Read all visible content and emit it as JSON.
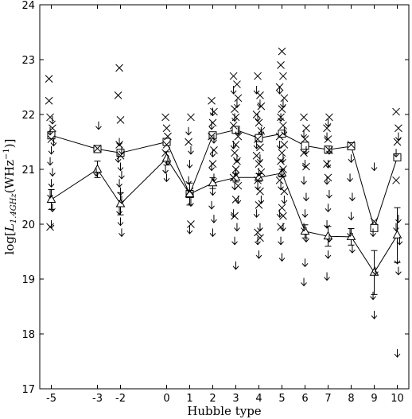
{
  "chart_data": {
    "type": "scatter",
    "title": "",
    "xlabel": "Hubble type",
    "ylabel": "log[L_1.4GHz(WHz^-1)]",
    "ylabel_parts": {
      "prefix": "log[",
      "L": "L",
      "sub": "1.4GHz",
      "mid": "(WHz",
      "sup": "−1",
      "suffix": ")]"
    },
    "xlim": [
      -5.5,
      10.5
    ],
    "ylim": [
      17,
      24
    ],
    "xticks": [
      -5,
      -3,
      -2,
      0,
      1,
      2,
      3,
      4,
      5,
      6,
      7,
      8,
      9,
      10
    ],
    "yticks": [
      17,
      18,
      19,
      20,
      21,
      22,
      23,
      24
    ],
    "grid": false,
    "series": [
      {
        "marker": "square",
        "values": [
          {
            "x": -5,
            "y": 21.62
          },
          {
            "x": -3,
            "y": 21.37
          },
          {
            "x": -2,
            "y": 21.3
          },
          {
            "x": 0,
            "y": 21.5
          },
          {
            "x": 1,
            "y": 20.55
          },
          {
            "x": 2,
            "y": 21.62
          },
          {
            "x": 3,
            "y": 21.72
          },
          {
            "x": 4,
            "y": 21.57
          },
          {
            "x": 5,
            "y": 21.65
          },
          {
            "x": 6,
            "y": 21.43
          },
          {
            "x": 7,
            "y": 21.36
          },
          {
            "x": 8,
            "y": 21.42
          },
          {
            "x": 9,
            "y": 19.93
          },
          {
            "x": 10,
            "y": 21.22
          }
        ]
      },
      {
        "marker": "triangle",
        "values": [
          {
            "x": -5,
            "y": 20.45,
            "err": 0.18
          },
          {
            "x": -3,
            "y": 21.0,
            "err": 0.15
          },
          {
            "x": -2,
            "y": 20.37,
            "err": 0.2
          },
          {
            "x": 0,
            "y": 21.2,
            "err": 0.12
          },
          {
            "x": 1,
            "y": 20.55,
            "err": 0.2
          },
          {
            "x": 2,
            "y": 20.75,
            "err": 0.1
          },
          {
            "x": 3,
            "y": 20.85,
            "err": 0.08
          },
          {
            "x": 4,
            "y": 20.85,
            "err": 0.07
          },
          {
            "x": 5,
            "y": 20.93,
            "err": 0.07
          },
          {
            "x": 6,
            "y": 19.87,
            "err": 0.12
          },
          {
            "x": 7,
            "y": 19.78,
            "err": 0.18
          },
          {
            "x": 8,
            "y": 19.77,
            "err": 0.15
          },
          {
            "x": 9,
            "y": 19.12,
            "err": 0.4
          },
          {
            "x": 10,
            "y": 19.8,
            "err": 0.5
          }
        ]
      },
      {
        "marker": "x",
        "values": [
          {
            "x": -5.1,
            "y": 22.65
          },
          {
            "x": -5.1,
            "y": 22.25
          },
          {
            "x": -5.05,
            "y": 21.95
          },
          {
            "x": -4.95,
            "y": 21.75
          },
          {
            "x": -5.0,
            "y": 21.55
          },
          {
            "x": -5.05,
            "y": 19.95
          },
          {
            "x": -3.0,
            "y": 21.38
          },
          {
            "x": -2.05,
            "y": 22.85
          },
          {
            "x": -2.1,
            "y": 22.35
          },
          {
            "x": -2.0,
            "y": 21.9
          },
          {
            "x": -2.05,
            "y": 21.45
          },
          {
            "x": -2.0,
            "y": 21.25
          },
          {
            "x": -0.05,
            "y": 21.95
          },
          {
            "x": 0.0,
            "y": 21.75
          },
          {
            "x": 0.05,
            "y": 21.6
          },
          {
            "x": 0.0,
            "y": 21.45
          },
          {
            "x": -0.05,
            "y": 21.3
          },
          {
            "x": 1.05,
            "y": 21.95
          },
          {
            "x": 0.95,
            "y": 21.5
          },
          {
            "x": 1.0,
            "y": 20.6
          },
          {
            "x": 1.05,
            "y": 20.0
          },
          {
            "x": 1.95,
            "y": 22.25
          },
          {
            "x": 2.05,
            "y": 22.05
          },
          {
            "x": 2.0,
            "y": 21.85
          },
          {
            "x": 1.95,
            "y": 21.6
          },
          {
            "x": 2.05,
            "y": 21.35
          },
          {
            "x": 2.0,
            "y": 21.1
          },
          {
            "x": 2.9,
            "y": 22.7
          },
          {
            "x": 3.05,
            "y": 22.55
          },
          {
            "x": 3.1,
            "y": 22.3
          },
          {
            "x": 2.95,
            "y": 22.1
          },
          {
            "x": 3.0,
            "y": 21.95
          },
          {
            "x": 2.9,
            "y": 21.8
          },
          {
            "x": 3.1,
            "y": 21.6
          },
          {
            "x": 3.0,
            "y": 21.45
          },
          {
            "x": 2.95,
            "y": 21.3
          },
          {
            "x": 3.05,
            "y": 21.15
          },
          {
            "x": 3.0,
            "y": 21.0
          },
          {
            "x": 2.9,
            "y": 20.85
          },
          {
            "x": 3.1,
            "y": 20.7
          },
          {
            "x": 3.0,
            "y": 20.45
          },
          {
            "x": 2.95,
            "y": 20.15
          },
          {
            "x": 3.95,
            "y": 22.7
          },
          {
            "x": 4.05,
            "y": 22.35
          },
          {
            "x": 4.1,
            "y": 22.15
          },
          {
            "x": 3.9,
            "y": 22.0
          },
          {
            "x": 4.0,
            "y": 21.85
          },
          {
            "x": 4.1,
            "y": 21.7
          },
          {
            "x": 3.95,
            "y": 21.55
          },
          {
            "x": 4.05,
            "y": 21.4
          },
          {
            "x": 3.9,
            "y": 21.25
          },
          {
            "x": 4.0,
            "y": 21.1
          },
          {
            "x": 4.1,
            "y": 20.95
          },
          {
            "x": 3.95,
            "y": 20.8
          },
          {
            "x": 4.05,
            "y": 20.6
          },
          {
            "x": 4.0,
            "y": 20.35
          },
          {
            "x": 3.95,
            "y": 19.85
          },
          {
            "x": 4.05,
            "y": 19.75
          },
          {
            "x": 5.0,
            "y": 23.15
          },
          {
            "x": 4.95,
            "y": 22.9
          },
          {
            "x": 5.05,
            "y": 22.7
          },
          {
            "x": 4.9,
            "y": 22.5
          },
          {
            "x": 5.1,
            "y": 22.3
          },
          {
            "x": 5.0,
            "y": 22.1
          },
          {
            "x": 4.95,
            "y": 21.95
          },
          {
            "x": 5.05,
            "y": 21.8
          },
          {
            "x": 4.9,
            "y": 21.6
          },
          {
            "x": 5.1,
            "y": 21.45
          },
          {
            "x": 5.0,
            "y": 21.3
          },
          {
            "x": 4.95,
            "y": 21.15
          },
          {
            "x": 5.05,
            "y": 21.0
          },
          {
            "x": 4.9,
            "y": 20.8
          },
          {
            "x": 5.1,
            "y": 20.6
          },
          {
            "x": 5.0,
            "y": 20.3
          },
          {
            "x": 4.95,
            "y": 19.95
          },
          {
            "x": 5.05,
            "y": 20.15
          },
          {
            "x": 5.95,
            "y": 21.95
          },
          {
            "x": 6.05,
            "y": 21.75
          },
          {
            "x": 6.0,
            "y": 21.55
          },
          {
            "x": 5.95,
            "y": 21.3
          },
          {
            "x": 6.05,
            "y": 21.05
          },
          {
            "x": 7.05,
            "y": 21.95
          },
          {
            "x": 6.95,
            "y": 21.75
          },
          {
            "x": 7.0,
            "y": 21.55
          },
          {
            "x": 7.05,
            "y": 21.35
          },
          {
            "x": 6.95,
            "y": 21.1
          },
          {
            "x": 7.0,
            "y": 20.85
          },
          {
            "x": 8.0,
            "y": 21.45
          },
          {
            "x": 9.0,
            "y": 20.05
          },
          {
            "x": 9.95,
            "y": 22.05
          },
          {
            "x": 10.05,
            "y": 21.75
          },
          {
            "x": 10.0,
            "y": 21.5
          },
          {
            "x": 9.95,
            "y": 20.8
          }
        ]
      },
      {
        "marker": "down-arrow",
        "values": [
          {
            "x": -4.95,
            "y": 21.9
          },
          {
            "x": -5.05,
            "y": 21.7
          },
          {
            "x": -4.9,
            "y": 21.5
          },
          {
            "x": -5.0,
            "y": 21.35
          },
          {
            "x": -5.05,
            "y": 21.15
          },
          {
            "x": -4.95,
            "y": 20.95
          },
          {
            "x": -5.0,
            "y": 20.75
          },
          {
            "x": -5.05,
            "y": 20.55
          },
          {
            "x": -4.95,
            "y": 20.3
          },
          {
            "x": -5.0,
            "y": 20.0
          },
          {
            "x": -2.95,
            "y": 21.8
          },
          {
            "x": -3.05,
            "y": 20.95
          },
          {
            "x": -2.05,
            "y": 21.5
          },
          {
            "x": -1.95,
            "y": 21.35
          },
          {
            "x": -2.1,
            "y": 21.2
          },
          {
            "x": -2.0,
            "y": 21.05
          },
          {
            "x": -1.95,
            "y": 20.9
          },
          {
            "x": -2.05,
            "y": 20.75
          },
          {
            "x": -2.0,
            "y": 20.6
          },
          {
            "x": -1.95,
            "y": 20.45
          },
          {
            "x": -2.05,
            "y": 20.25
          },
          {
            "x": -2.0,
            "y": 20.05
          },
          {
            "x": -1.95,
            "y": 19.85
          },
          {
            "x": 0.05,
            "y": 21.15
          },
          {
            "x": -0.05,
            "y": 21.0
          },
          {
            "x": 0.0,
            "y": 20.85
          },
          {
            "x": 0.95,
            "y": 21.7
          },
          {
            "x": 1.05,
            "y": 21.35
          },
          {
            "x": 1.0,
            "y": 21.1
          },
          {
            "x": 0.95,
            "y": 20.8
          },
          {
            "x": 1.05,
            "y": 20.4
          },
          {
            "x": 1.0,
            "y": 19.9
          },
          {
            "x": 2.0,
            "y": 22.05
          },
          {
            "x": 1.95,
            "y": 21.8
          },
          {
            "x": 2.05,
            "y": 21.55
          },
          {
            "x": 2.0,
            "y": 21.3
          },
          {
            "x": 1.95,
            "y": 21.05
          },
          {
            "x": 2.05,
            "y": 20.85
          },
          {
            "x": 2.0,
            "y": 20.6
          },
          {
            "x": 1.95,
            "y": 20.35
          },
          {
            "x": 2.05,
            "y": 20.1
          },
          {
            "x": 2.0,
            "y": 19.85
          },
          {
            "x": 2.9,
            "y": 22.45
          },
          {
            "x": 3.05,
            "y": 22.2
          },
          {
            "x": 2.95,
            "y": 21.95
          },
          {
            "x": 3.1,
            "y": 21.7
          },
          {
            "x": 2.9,
            "y": 21.45
          },
          {
            "x": 3.05,
            "y": 21.2
          },
          {
            "x": 3.0,
            "y": 20.95
          },
          {
            "x": 2.95,
            "y": 20.7
          },
          {
            "x": 3.1,
            "y": 20.45
          },
          {
            "x": 2.9,
            "y": 20.2
          },
          {
            "x": 3.05,
            "y": 19.95
          },
          {
            "x": 2.95,
            "y": 19.7
          },
          {
            "x": 3.0,
            "y": 19.25
          },
          {
            "x": 3.9,
            "y": 22.45
          },
          {
            "x": 4.05,
            "y": 22.2
          },
          {
            "x": 3.95,
            "y": 21.95
          },
          {
            "x": 4.1,
            "y": 21.7
          },
          {
            "x": 3.9,
            "y": 21.45
          },
          {
            "x": 4.05,
            "y": 21.2
          },
          {
            "x": 4.0,
            "y": 20.95
          },
          {
            "x": 3.95,
            "y": 20.7
          },
          {
            "x": 4.1,
            "y": 20.45
          },
          {
            "x": 3.9,
            "y": 20.2
          },
          {
            "x": 4.05,
            "y": 19.95
          },
          {
            "x": 3.95,
            "y": 19.7
          },
          {
            "x": 4.0,
            "y": 19.45
          },
          {
            "x": 4.9,
            "y": 22.45
          },
          {
            "x": 5.05,
            "y": 22.2
          },
          {
            "x": 4.95,
            "y": 21.95
          },
          {
            "x": 5.1,
            "y": 21.7
          },
          {
            "x": 4.9,
            "y": 21.45
          },
          {
            "x": 5.05,
            "y": 21.2
          },
          {
            "x": 5.0,
            "y": 20.95
          },
          {
            "x": 4.95,
            "y": 20.7
          },
          {
            "x": 5.1,
            "y": 20.45
          },
          {
            "x": 4.9,
            "y": 20.2
          },
          {
            "x": 5.05,
            "y": 19.95
          },
          {
            "x": 4.95,
            "y": 19.7
          },
          {
            "x": 5.0,
            "y": 19.4
          },
          {
            "x": 5.95,
            "y": 21.65
          },
          {
            "x": 6.05,
            "y": 21.35
          },
          {
            "x": 6.0,
            "y": 21.1
          },
          {
            "x": 5.95,
            "y": 20.8
          },
          {
            "x": 6.05,
            "y": 20.5
          },
          {
            "x": 6.0,
            "y": 20.2
          },
          {
            "x": 5.95,
            "y": 19.95
          },
          {
            "x": 6.05,
            "y": 19.75
          },
          {
            "x": 6.0,
            "y": 19.3
          },
          {
            "x": 5.95,
            "y": 18.95
          },
          {
            "x": 7.0,
            "y": 21.85
          },
          {
            "x": 6.95,
            "y": 21.6
          },
          {
            "x": 7.05,
            "y": 21.35
          },
          {
            "x": 7.0,
            "y": 21.1
          },
          {
            "x": 6.95,
            "y": 20.8
          },
          {
            "x": 7.05,
            "y": 20.55
          },
          {
            "x": 7.0,
            "y": 20.3
          },
          {
            "x": 6.95,
            "y": 20.0
          },
          {
            "x": 7.05,
            "y": 19.75
          },
          {
            "x": 7.0,
            "y": 19.45
          },
          {
            "x": 6.95,
            "y": 19.05
          },
          {
            "x": 8.0,
            "y": 21.2
          },
          {
            "x": 7.95,
            "y": 20.85
          },
          {
            "x": 8.05,
            "y": 20.5
          },
          {
            "x": 8.0,
            "y": 20.15
          },
          {
            "x": 7.95,
            "y": 19.85
          },
          {
            "x": 8.05,
            "y": 19.55
          },
          {
            "x": 9.0,
            "y": 21.05
          },
          {
            "x": 8.95,
            "y": 19.85
          },
          {
            "x": 9.05,
            "y": 19.15
          },
          {
            "x": 8.95,
            "y": 18.7
          },
          {
            "x": 9.0,
            "y": 18.35
          },
          {
            "x": 10.05,
            "y": 21.6
          },
          {
            "x": 9.95,
            "y": 21.3
          },
          {
            "x": 10.05,
            "y": 20.1
          },
          {
            "x": 9.95,
            "y": 19.95
          },
          {
            "x": 10.1,
            "y": 19.7
          },
          {
            "x": 10.0,
            "y": 19.35
          },
          {
            "x": 10.05,
            "y": 19.15
          },
          {
            "x": 10.0,
            "y": 17.65
          }
        ]
      }
    ]
  }
}
